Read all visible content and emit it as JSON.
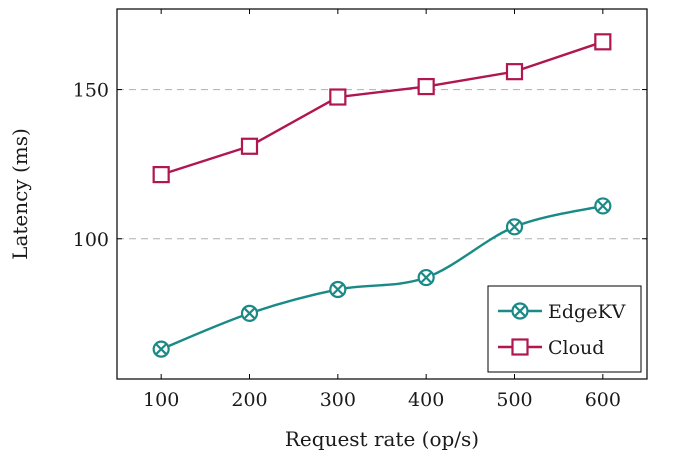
{
  "chart_data": {
    "type": "line",
    "xlabel": "Request rate (op/s)",
    "ylabel": "Latency (ms)",
    "x": [
      100,
      200,
      300,
      400,
      500,
      600
    ],
    "xlim": [
      50,
      650
    ],
    "ylim": [
      53,
      177
    ],
    "x_ticks": [
      "100",
      "200",
      "300",
      "400",
      "500",
      "600"
    ],
    "y_ticks": [
      100,
      150
    ],
    "y_tick_labels": [
      "100",
      "150"
    ],
    "grid": "horizontal dashed at y ticks",
    "legend_position": "bottom-right",
    "series": [
      {
        "name": "EdgeKV",
        "values": [
          63,
          75,
          83,
          87,
          104,
          111
        ],
        "color": "#1a8a86",
        "marker": "circle-x",
        "smooth": true
      },
      {
        "name": "Cloud",
        "values": [
          121.5,
          131,
          147.5,
          151,
          156,
          166
        ],
        "color": "#b0164f",
        "marker": "square",
        "smooth": false
      }
    ]
  }
}
